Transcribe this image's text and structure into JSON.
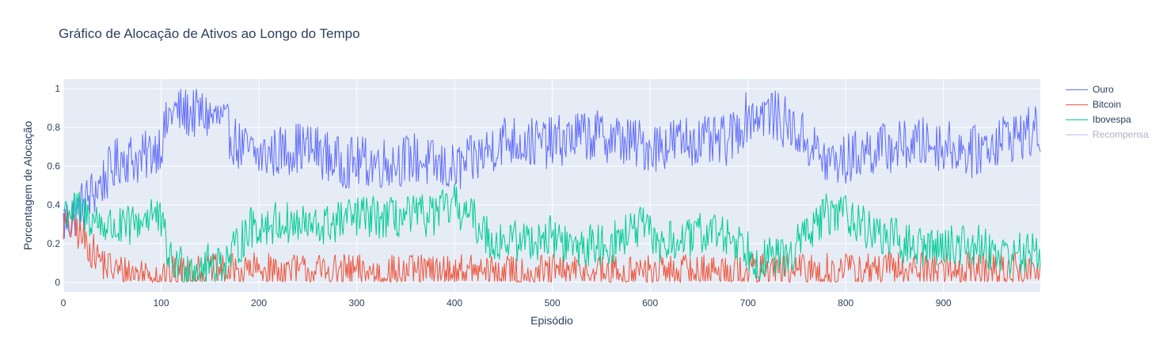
{
  "chart_data": {
    "type": "line",
    "title": "Gráfico de Alocação de Ativos ao Longo do Tempo",
    "xlabel": "Episódio",
    "ylabel": "Porcentagem de Alocação",
    "xlim": [
      0,
      999
    ],
    "ylim": [
      -0.05,
      1.05
    ],
    "x_ticks": [
      0,
      100,
      200,
      300,
      400,
      500,
      600,
      700,
      800,
      900
    ],
    "x_tick_labels": [
      "0",
      "100",
      "200",
      "300",
      "400",
      "500",
      "600",
      "700",
      "800",
      "900"
    ],
    "y_ticks": [
      0,
      0.2,
      0.4,
      0.6,
      0.8,
      1
    ],
    "y_tick_labels": [
      "0",
      "0.2",
      "0.4",
      "0.6",
      "0.8",
      "1"
    ],
    "grid": true,
    "legend_position": "right",
    "num_points": 1000,
    "series": [
      {
        "name": "Ouro",
        "color": "#636efa",
        "visible": true,
        "noise": 0.085,
        "anchors": [
          [
            0,
            0.3
          ],
          [
            20,
            0.4
          ],
          [
            40,
            0.52
          ],
          [
            60,
            0.65
          ],
          [
            80,
            0.63
          ],
          [
            100,
            0.72
          ],
          [
            110,
            0.88
          ],
          [
            140,
            0.87
          ],
          [
            160,
            0.84
          ],
          [
            180,
            0.7
          ],
          [
            200,
            0.65
          ],
          [
            240,
            0.7
          ],
          [
            260,
            0.68
          ],
          [
            280,
            0.62
          ],
          [
            300,
            0.62
          ],
          [
            330,
            0.62
          ],
          [
            360,
            0.64
          ],
          [
            380,
            0.6
          ],
          [
            400,
            0.58
          ],
          [
            420,
            0.63
          ],
          [
            450,
            0.74
          ],
          [
            480,
            0.72
          ],
          [
            500,
            0.72
          ],
          [
            530,
            0.76
          ],
          [
            560,
            0.75
          ],
          [
            580,
            0.72
          ],
          [
            600,
            0.7
          ],
          [
            640,
            0.74
          ],
          [
            660,
            0.72
          ],
          [
            680,
            0.73
          ],
          [
            700,
            0.86
          ],
          [
            720,
            0.88
          ],
          [
            740,
            0.82
          ],
          [
            760,
            0.73
          ],
          [
            780,
            0.62
          ],
          [
            800,
            0.63
          ],
          [
            820,
            0.68
          ],
          [
            850,
            0.7
          ],
          [
            880,
            0.72
          ],
          [
            910,
            0.7
          ],
          [
            930,
            0.67
          ],
          [
            960,
            0.75
          ],
          [
            999,
            0.78
          ]
        ]
      },
      {
        "name": "Bitcoin",
        "color": "#ef553b",
        "visible": true,
        "noise": 0.06,
        "anchors": [
          [
            0,
            0.3
          ],
          [
            15,
            0.26
          ],
          [
            30,
            0.16
          ],
          [
            45,
            0.08
          ],
          [
            60,
            0.05
          ],
          [
            100,
            0.04
          ],
          [
            200,
            0.06
          ],
          [
            300,
            0.05
          ],
          [
            400,
            0.05
          ],
          [
            500,
            0.05
          ],
          [
            600,
            0.05
          ],
          [
            700,
            0.06
          ],
          [
            800,
            0.06
          ],
          [
            900,
            0.07
          ],
          [
            999,
            0.06
          ]
        ]
      },
      {
        "name": "Ibovespa",
        "color": "#00cc96",
        "visible": true,
        "noise": 0.07,
        "anchors": [
          [
            0,
            0.38
          ],
          [
            20,
            0.36
          ],
          [
            40,
            0.3
          ],
          [
            60,
            0.27
          ],
          [
            80,
            0.32
          ],
          [
            90,
            0.37
          ],
          [
            100,
            0.3
          ],
          [
            110,
            0.1
          ],
          [
            140,
            0.08
          ],
          [
            170,
            0.12
          ],
          [
            190,
            0.28
          ],
          [
            220,
            0.31
          ],
          [
            260,
            0.28
          ],
          [
            300,
            0.34
          ],
          [
            340,
            0.33
          ],
          [
            380,
            0.35
          ],
          [
            400,
            0.4
          ],
          [
            420,
            0.32
          ],
          [
            440,
            0.21
          ],
          [
            480,
            0.22
          ],
          [
            500,
            0.24
          ],
          [
            520,
            0.18
          ],
          [
            560,
            0.2
          ],
          [
            590,
            0.29
          ],
          [
            610,
            0.2
          ],
          [
            640,
            0.22
          ],
          [
            660,
            0.27
          ],
          [
            690,
            0.22
          ],
          [
            710,
            0.12
          ],
          [
            740,
            0.13
          ],
          [
            760,
            0.25
          ],
          [
            780,
            0.35
          ],
          [
            800,
            0.37
          ],
          [
            820,
            0.28
          ],
          [
            840,
            0.24
          ],
          [
            870,
            0.18
          ],
          [
            900,
            0.19
          ],
          [
            930,
            0.2
          ],
          [
            960,
            0.15
          ],
          [
            999,
            0.15
          ]
        ]
      },
      {
        "name": "Recompensa",
        "color": "#ab63fa",
        "visible": false,
        "noise": 0,
        "anchors": []
      }
    ]
  }
}
